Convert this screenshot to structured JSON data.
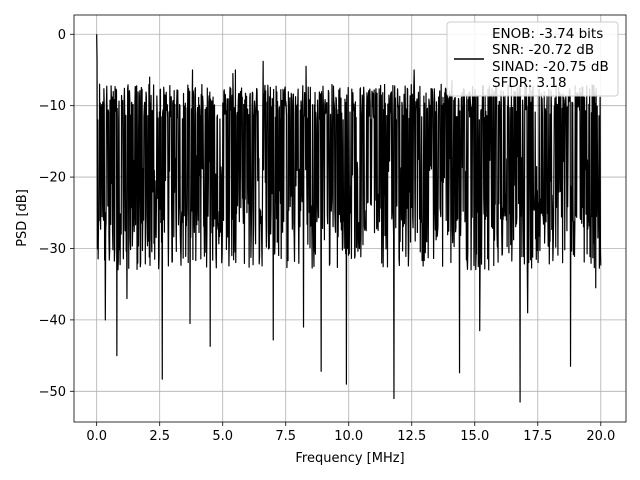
{
  "chart_data": {
    "type": "line",
    "title": "",
    "xlabel": "Frequency [MHz]",
    "ylabel": "PSD [dB]",
    "xlim": [
      -0.9,
      21.0
    ],
    "ylim": [
      -54.3,
      2.7
    ],
    "xticks": [
      0.0,
      2.5,
      5.0,
      7.5,
      10.0,
      12.5,
      15.0,
      17.5,
      20.0
    ],
    "xtick_labels": [
      "0.0",
      "2.5",
      "5.0",
      "7.5",
      "10.0",
      "12.5",
      "15.0",
      "17.5",
      "20.0"
    ],
    "yticks": [
      0,
      -10,
      -20,
      -30,
      -40,
      -50
    ],
    "ytick_labels": [
      "0",
      "−10",
      "−20",
      "−30",
      "−40",
      "−50"
    ],
    "grid": true,
    "legend_position": "top-right",
    "legend_lines": [
      "ENOB: -3.74 bits",
      "SNR: -20.72 dB",
      "SINAD: -20.75 dB",
      "SFDR: 3.18"
    ],
    "series_color": "#000000",
    "series": [
      {
        "x_range": [
          0.0,
          20.0
        ],
        "noise_floor_db": -20,
        "peaks": [
          {
            "x": 0.0,
            "y": 0.0
          },
          {
            "x": 0.02,
            "y": -3.5
          },
          {
            "x": 0.05,
            "y": -12
          },
          {
            "x": 0.12,
            "y": -7
          },
          {
            "x": 0.3,
            "y": -10
          },
          {
            "x": 2.1,
            "y": -6
          },
          {
            "x": 3.8,
            "y": -5
          },
          {
            "x": 5.4,
            "y": -5.5
          },
          {
            "x": 5.5,
            "y": -5
          },
          {
            "x": 6.6,
            "y": -3.8
          },
          {
            "x": 8.3,
            "y": -4.5
          },
          {
            "x": 12.6,
            "y": -5
          },
          {
            "x": 14.1,
            "y": -6.5
          }
        ],
        "dips": [
          {
            "x": 0.35,
            "y": -40
          },
          {
            "x": 0.8,
            "y": -45
          },
          {
            "x": 1.2,
            "y": -37
          },
          {
            "x": 2.6,
            "y": -48.3
          },
          {
            "x": 3.7,
            "y": -40.5
          },
          {
            "x": 4.5,
            "y": -43.7
          },
          {
            "x": 7.0,
            "y": -42.8
          },
          {
            "x": 8.2,
            "y": -41
          },
          {
            "x": 8.9,
            "y": -47.2
          },
          {
            "x": 9.9,
            "y": -49
          },
          {
            "x": 11.8,
            "y": -51
          },
          {
            "x": 14.4,
            "y": -47.4
          },
          {
            "x": 15.2,
            "y": -41.5
          },
          {
            "x": 16.8,
            "y": -51.5
          },
          {
            "x": 17.1,
            "y": -39
          },
          {
            "x": 18.8,
            "y": -46.5
          },
          {
            "x": 19.8,
            "y": -35.5
          }
        ]
      }
    ]
  }
}
